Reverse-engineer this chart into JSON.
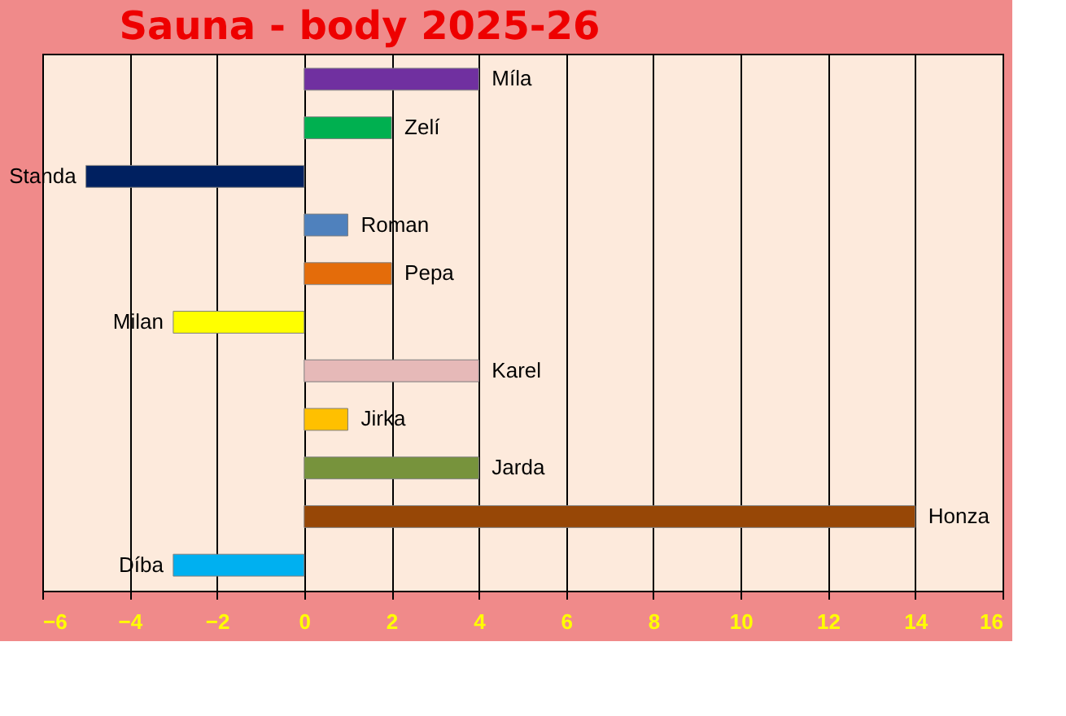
{
  "chart_data": {
    "type": "bar",
    "orientation": "horizontal",
    "title": "Sauna - body 2025-26",
    "categories": [
      "Míla",
      "Zelí",
      "Standa",
      "Roman",
      "Pepa",
      "Milan",
      "Karel",
      "Jirka",
      "Jarda",
      "Honza",
      "Díba"
    ],
    "values": [
      4,
      2,
      -5,
      1,
      2,
      -3,
      4,
      1,
      4,
      14,
      -3
    ],
    "colors": [
      "#7030a0",
      "#00b050",
      "#002060",
      "#4f81bd",
      "#e46c0a",
      "#ffff00",
      "#e6b9b8",
      "#ffc000",
      "#77933c",
      "#974706",
      "#00b0f0"
    ],
    "xlim": [
      -6,
      16
    ],
    "xticks": [
      -6,
      -4,
      -2,
      0,
      2,
      4,
      6,
      8,
      10,
      12,
      14,
      16
    ],
    "grid": "x"
  }
}
